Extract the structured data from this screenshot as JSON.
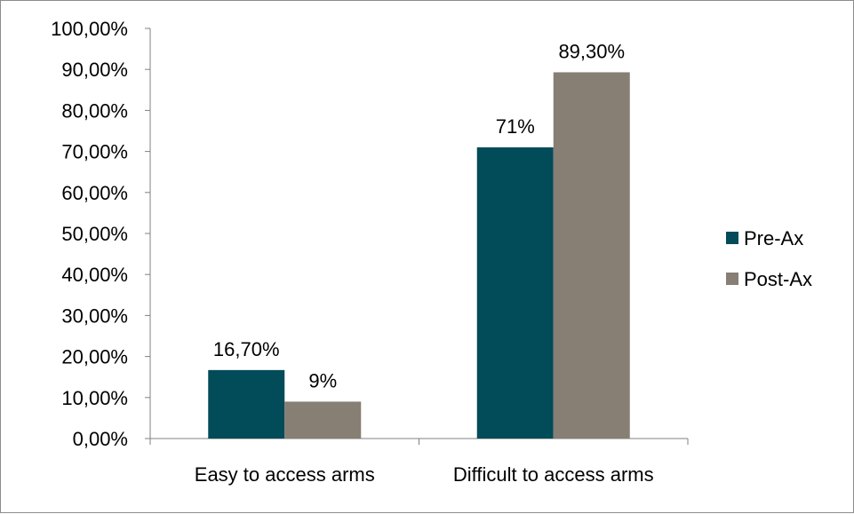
{
  "chart_data": {
    "type": "bar",
    "categories": [
      "Easy to access arms",
      "Difficult to access arms"
    ],
    "series": [
      {
        "name": "Pre-Ax",
        "values": [
          16.7,
          71
        ],
        "labels": [
          "16,70%",
          "71%"
        ],
        "color": "#024b59"
      },
      {
        "name": "Post-Ax",
        "values": [
          9,
          89.3
        ],
        "labels": [
          "9%",
          "89,30%"
        ],
        "color": "#877e74"
      }
    ],
    "yticks": [
      "0,00%",
      "10,00%",
      "20,00%",
      "30,00%",
      "40,00%",
      "50,00%",
      "60,00%",
      "70,00%",
      "80,00%",
      "90,00%",
      "100,00%"
    ],
    "ylim": [
      0,
      100
    ],
    "grid": false,
    "legend": "right",
    "title": "",
    "xlabel": "",
    "ylabel": ""
  }
}
